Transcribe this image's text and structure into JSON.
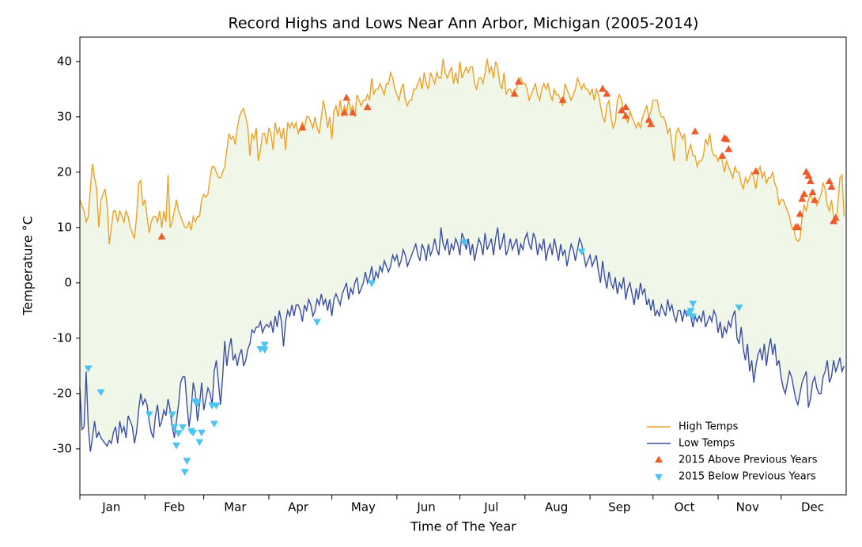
{
  "chart_data": {
    "type": "line",
    "title": "Record Highs and Lows Near Ann Arbor, Michigan (2005-2014)",
    "xlabel": "Time of The Year",
    "ylabel": "Temperature °C",
    "xlim": [
      0,
      365
    ],
    "ylim": [
      -38.3,
      44.4
    ],
    "yticks": [
      -30,
      -20,
      -10,
      0,
      10,
      20,
      30,
      40
    ],
    "xticks": [
      0,
      31,
      59,
      90,
      120,
      151,
      181,
      212,
      243,
      273,
      304,
      334
    ],
    "xticklabels": [
      {
        "value": 15,
        "label": "Jan"
      },
      {
        "value": 45,
        "label": "Feb"
      },
      {
        "value": 74,
        "label": "Mar"
      },
      {
        "value": 104,
        "label": "Apr"
      },
      {
        "value": 135,
        "label": "May"
      },
      {
        "value": 165,
        "label": "Jun"
      },
      {
        "value": 196,
        "label": "Jul"
      },
      {
        "value": 227,
        "label": "Aug"
      },
      {
        "value": 257,
        "label": "Sep"
      },
      {
        "value": 288,
        "label": "Oct"
      },
      {
        "value": 318,
        "label": "Nov"
      },
      {
        "value": 349,
        "label": "Dec"
      }
    ],
    "grid": false,
    "legend": "lower right",
    "fill_between_color": "#f0f7e8",
    "x": [
      0,
      1,
      2,
      3,
      4,
      5,
      6,
      7,
      8,
      9,
      10,
      11,
      12,
      13,
      14,
      15,
      16,
      17,
      18,
      19,
      20,
      21,
      22,
      23,
      24,
      25,
      26,
      27,
      28,
      29,
      30,
      31,
      32,
      33,
      34,
      35,
      36,
      37,
      38,
      39,
      40,
      41,
      42,
      43,
      44,
      45,
      46,
      47,
      48,
      49,
      50,
      51,
      52,
      53,
      54,
      55,
      56,
      57,
      58,
      59,
      60,
      61,
      62,
      63,
      64,
      65,
      66,
      67,
      68,
      69,
      70,
      71,
      72,
      73,
      74,
      75,
      76,
      77,
      78,
      79,
      80,
      81,
      82,
      83,
      84,
      85,
      86,
      87,
      88,
      89,
      90,
      91,
      92,
      93,
      94,
      95,
      96,
      97,
      98,
      99,
      100,
      101,
      102,
      103,
      104,
      105,
      106,
      107,
      108,
      109,
      110,
      111,
      112,
      113,
      114,
      115,
      116,
      117,
      118,
      119,
      120,
      121,
      122,
      123,
      124,
      125,
      126,
      127,
      128,
      129,
      130,
      131,
      132,
      133,
      134,
      135,
      136,
      137,
      138,
      139,
      140,
      141,
      142,
      143,
      144,
      145,
      146,
      147,
      148,
      149,
      150,
      151,
      152,
      153,
      154,
      155,
      156,
      157,
      158,
      159,
      160,
      161,
      162,
      163,
      164,
      165,
      166,
      167,
      168,
      169,
      170,
      171,
      172,
      173,
      174,
      175,
      176,
      177,
      178,
      179,
      180,
      181,
      182,
      183,
      184,
      185,
      186,
      187,
      188,
      189,
      190,
      191,
      192,
      193,
      194,
      195,
      196,
      197,
      198,
      199,
      200,
      201,
      202,
      203,
      204,
      205,
      206,
      207,
      208,
      209,
      210,
      211,
      212,
      213,
      214,
      215,
      216,
      217,
      218,
      219,
      220,
      221,
      222,
      223,
      224,
      225,
      226,
      227,
      228,
      229,
      230,
      231,
      232,
      233,
      234,
      235,
      236,
      237,
      238,
      239,
      240,
      241,
      242,
      243,
      244,
      245,
      246,
      247,
      248,
      249,
      250,
      251,
      252,
      253,
      254,
      255,
      256,
      257,
      258,
      259,
      260,
      261,
      262,
      263,
      264,
      265,
      266,
      267,
      268,
      269,
      270,
      271,
      272,
      273,
      274,
      275,
      276,
      277,
      278,
      279,
      280,
      281,
      282,
      283,
      284,
      285,
      286,
      287,
      288,
      289,
      290,
      291,
      292,
      293,
      294,
      295,
      296,
      297,
      298,
      299,
      300,
      301,
      302,
      303,
      304,
      305,
      306,
      307,
      308,
      309,
      310,
      311,
      312,
      313,
      314,
      315,
      316,
      317,
      318,
      319,
      320,
      321,
      322,
      323,
      324,
      325,
      326,
      327,
      328,
      329,
      330,
      331,
      332,
      333,
      334,
      335,
      336,
      337,
      338,
      339,
      340,
      341,
      342,
      343,
      344,
      345,
      346,
      347,
      348,
      349,
      350,
      351,
      352,
      353,
      354,
      355,
      356,
      357,
      358,
      359,
      360,
      361,
      362,
      363,
      364
    ],
    "series": [
      {
        "name": "High Temps",
        "color": "#f0a024",
        "values": [
          15,
          14,
          13,
          11,
          12,
          17,
          21.5,
          19,
          17,
          10,
          15,
          16,
          17,
          14,
          7,
          10,
          13,
          13,
          11,
          13,
          12,
          11,
          13,
          12,
          10,
          9,
          8,
          12,
          18,
          18.5,
          14,
          15,
          12,
          9,
          11,
          12,
          12,
          11,
          13,
          10,
          13,
          11,
          19.5,
          10,
          11,
          13,
          15,
          13,
          12,
          11,
          10,
          10,
          11,
          9.5,
          12,
          11,
          12,
          12,
          15,
          16,
          15.5,
          16,
          19,
          21,
          21,
          20,
          19,
          19,
          20,
          21,
          24,
          27,
          26,
          26.5,
          25,
          28,
          30,
          31,
          31.5,
          30,
          28,
          23,
          27,
          26,
          28,
          22,
          24,
          27,
          27,
          25,
          28,
          27,
          24,
          29,
          27,
          28,
          26,
          28,
          24,
          29,
          28,
          29,
          28,
          29,
          27,
          28,
          29,
          28,
          30,
          30,
          29,
          28,
          30,
          28,
          27,
          30,
          33,
          31,
          28,
          30,
          26,
          31,
          32,
          30,
          33,
          30,
          32,
          31,
          33,
          31,
          32,
          30,
          34,
          33,
          32,
          33,
          33,
          34,
          33,
          37,
          34,
          35,
          35,
          36,
          35,
          34,
          36,
          36,
          38,
          37,
          35,
          34,
          33,
          35,
          36,
          33,
          32,
          33,
          33,
          35,
          35,
          36,
          37,
          35,
          38,
          36,
          35,
          38,
          37,
          36,
          38,
          37,
          37,
          40.5,
          38,
          37,
          38,
          39,
          36,
          38,
          36,
          40,
          37,
          38,
          39,
          38,
          39,
          39,
          36,
          35,
          37,
          37,
          36,
          38,
          40.5,
          38,
          39,
          37,
          40,
          39,
          36,
          35,
          38,
          34,
          35,
          35,
          34,
          35,
          35,
          37,
          37,
          36,
          36,
          35,
          33,
          34,
          35,
          36,
          34,
          33,
          35,
          36,
          35,
          36,
          34,
          33,
          35,
          34,
          34,
          33,
          32,
          36,
          35,
          34,
          33,
          34,
          35,
          37,
          36,
          35,
          36,
          35,
          35,
          34,
          35,
          33,
          35,
          34,
          32,
          30,
          29,
          32,
          33,
          30,
          28,
          29,
          33,
          34,
          33,
          31,
          30,
          29,
          31,
          30,
          29,
          28,
          29,
          28,
          30,
          31,
          32,
          30,
          31,
          33,
          33,
          33,
          31,
          30,
          30,
          29,
          27,
          28,
          25,
          22,
          27,
          28,
          27,
          26,
          27,
          22,
          24,
          25,
          23,
          23,
          21,
          22,
          22,
          23,
          26,
          25,
          27,
          24,
          23,
          23,
          22,
          23,
          22,
          20,
          22,
          21,
          20,
          19,
          21,
          20,
          20,
          18,
          17,
          19,
          18,
          19,
          20,
          19,
          17,
          20,
          21,
          19,
          20,
          18,
          19,
          19,
          20,
          18,
          17,
          14,
          15,
          15,
          14,
          13,
          12,
          10,
          10,
          8,
          7.5,
          8,
          12,
          14,
          13,
          15,
          16,
          15,
          15,
          14,
          15,
          16,
          18,
          17,
          14,
          13,
          15,
          12,
          11,
          14,
          19,
          19.5,
          12
        ]
      },
      {
        "name": "Low Temps",
        "color": "#3a4ea6",
        "values": [
          -19,
          -26.5,
          -26,
          -16,
          -26,
          -30.5,
          -28,
          -25,
          -28,
          -27,
          -28,
          -28.5,
          -29,
          -29.5,
          -28.5,
          -29,
          -27,
          -26,
          -29,
          -25,
          -27,
          -26,
          -28,
          -24,
          -25,
          -26,
          -29,
          -27,
          -23,
          -20,
          -22,
          -21,
          -22,
          -25,
          -27,
          -28,
          -24,
          -22,
          -26,
          -25,
          -23,
          -24,
          -21,
          -23,
          -26,
          -28,
          -25,
          -22,
          -18,
          -17,
          -17,
          -22,
          -26,
          -23,
          -18,
          -20,
          -25,
          -22,
          -18,
          -23,
          -21,
          -19,
          -20,
          -22,
          -16,
          -14,
          -18,
          -22,
          -17,
          -10.5,
          -15,
          -12,
          -10,
          -14,
          -13,
          -15,
          -13,
          -12,
          -15,
          -14,
          -12,
          -11,
          -8.5,
          -9,
          -8,
          -8,
          -7,
          -9,
          -8,
          -7.5,
          -8,
          -7,
          -9,
          -6,
          -8,
          -5,
          -7,
          -11.5,
          -7,
          -5,
          -6,
          -4,
          -6,
          -4,
          -4,
          -5,
          -7,
          -4,
          -5,
          -3,
          -4,
          -6,
          -5,
          -3,
          -4,
          -2,
          -4,
          -3,
          -5,
          -3,
          -6,
          -3,
          -2,
          -3,
          -4,
          -2,
          -1,
          0,
          -3,
          -1,
          -2,
          0,
          1,
          -2,
          -1,
          0,
          2,
          0,
          1,
          3,
          0,
          2,
          1,
          3,
          2,
          4,
          3,
          2,
          3,
          5,
          4,
          5,
          3,
          4,
          6,
          5,
          3,
          4,
          5,
          6,
          7,
          5,
          4,
          7,
          6,
          4,
          7,
          5,
          6,
          8,
          6,
          5,
          10,
          7,
          6,
          8,
          5,
          7,
          6,
          8,
          7,
          5,
          9,
          8,
          6,
          8,
          5,
          7,
          4,
          6,
          8,
          7,
          5,
          9,
          6,
          7,
          8,
          5,
          8,
          10,
          6,
          7,
          9,
          5,
          6,
          8,
          6,
          7,
          8,
          5,
          7,
          6,
          8,
          9,
          7,
          6,
          9,
          8,
          5,
          7,
          6,
          8,
          4,
          6,
          7,
          5,
          8,
          6,
          4,
          7,
          5,
          6,
          3,
          5,
          7,
          6,
          4,
          6,
          8,
          7,
          5,
          3,
          4,
          5,
          3,
          4,
          5,
          2,
          0,
          4,
          1,
          -1,
          2,
          0,
          -1,
          1,
          -2,
          0,
          -1,
          1,
          -3,
          -1,
          0,
          -2,
          -4,
          -1,
          -3,
          0,
          -2,
          -1,
          -4,
          -3,
          -5,
          -3,
          -6,
          -5,
          -6,
          -4,
          -5,
          -6,
          -3,
          -5,
          -4,
          -6,
          -7,
          -5,
          -5,
          -7,
          -5,
          -6,
          -5,
          -6,
          -8,
          -6,
          -7,
          -6,
          -7,
          -5,
          -8,
          -7,
          -6,
          -7,
          -5,
          -6,
          -9,
          -7,
          -10,
          -8,
          -9,
          -7,
          -8,
          -6,
          -5,
          -10,
          -11,
          -8,
          -12,
          -14,
          -11,
          -16,
          -14,
          -18,
          -15,
          -13,
          -12,
          -14,
          -11,
          -15,
          -12,
          -10,
          -13,
          -11,
          -15,
          -14,
          -17,
          -19,
          -20,
          -18,
          -16,
          -17,
          -19,
          -21,
          -22,
          -20,
          -18,
          -17,
          -16,
          -22.5,
          -21,
          -18,
          -17,
          -19,
          -20,
          -20,
          -17,
          -16,
          -14,
          -18,
          -17,
          -14,
          -16,
          -15,
          -13.5,
          -16,
          -15
        ]
      }
    ],
    "scatter_series": [
      {
        "name": "2015 Above Previous Years",
        "color": "#f05a28",
        "marker": "up",
        "x": [
          39,
          127,
          126,
          130,
          137,
          106,
          207,
          209,
          230,
          249,
          251,
          258,
          260,
          260,
          271,
          272,
          293,
          306,
          307,
          308,
          309,
          322,
          341,
          342,
          343,
          344,
          345,
          346,
          347,
          348,
          349,
          350,
          357,
          358,
          359,
          360
        ],
        "values": [
          8.3,
          33.4,
          30.7,
          30.7,
          31.7,
          28,
          34.1,
          36.3,
          33,
          35,
          34.1,
          31.1,
          31.7,
          30.1,
          29.4,
          28.6,
          27.3,
          22.9,
          26.1,
          25.9,
          24.1,
          20.1,
          10,
          10,
          12.4,
          15.1,
          16,
          20,
          19.3,
          18.3,
          16.3,
          14.9,
          18.3,
          17.3,
          11.1,
          11.7
        ]
      },
      {
        "name": "2015 Below Previous Years",
        "color": "#4cc4f2",
        "marker": "down",
        "x": [
          4,
          10,
          33,
          44,
          45,
          47,
          46,
          49,
          50,
          51,
          53,
          54,
          55,
          56,
          57,
          58,
          63,
          65,
          64,
          86,
          88,
          88,
          113,
          139,
          183,
          239,
          290,
          291,
          292,
          292,
          314
        ],
        "values": [
          -15.4,
          -19.7,
          -23.7,
          -23.7,
          -26,
          -27.1,
          -29.3,
          -26,
          -34.1,
          -32.1,
          -26.7,
          -27,
          -21.4,
          -21.7,
          -28.7,
          -27,
          -22.1,
          -22.1,
          -25.4,
          -11.9,
          -11.1,
          -12,
          -7,
          0,
          7.4,
          5.7,
          -5.4,
          -5,
          -6,
          -3.7,
          -4.4
        ]
      }
    ]
  }
}
